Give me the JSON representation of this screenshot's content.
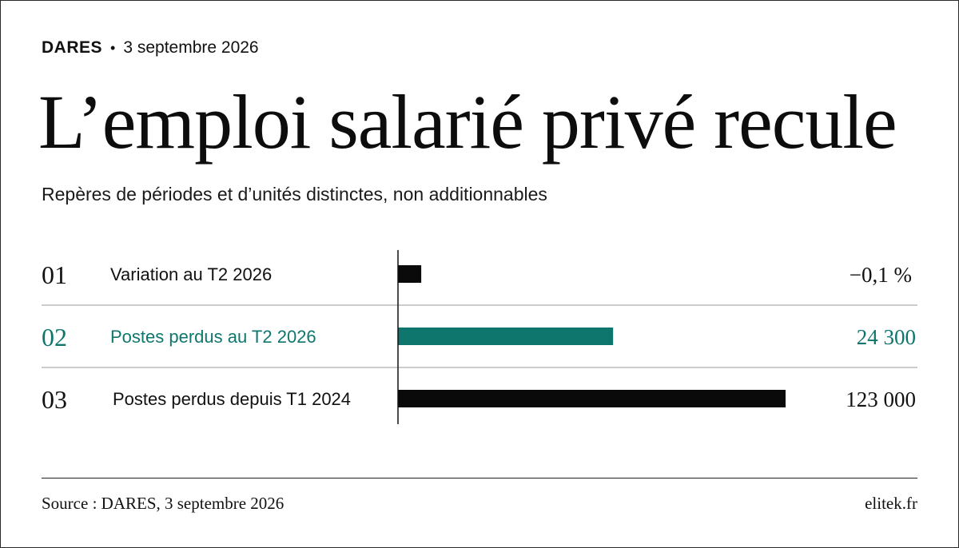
{
  "header": {
    "source": "DARES",
    "bullet": "•",
    "date": "3 septembre 2026",
    "title": "L’emploi salarié privé recule",
    "subtitle": "Repères de périodes et d’unités distinctes, non additionnables"
  },
  "chart_data": {
    "type": "bar",
    "title": "L’emploi salarié privé recule",
    "subtitle": "Repères de périodes et d’unités distinctes, non additionnables",
    "orientation": "horizontal",
    "grid": false,
    "rows": [
      {
        "index": "01",
        "label": "Variation au T2 2026",
        "value_label": "−0,1 %",
        "value": -0.1,
        "bar_fraction": 0.06,
        "color": "#0a0a0a"
      },
      {
        "index": "02",
        "label": "Postes perdus au T2 2026",
        "value_label": "24 300",
        "value": 24300,
        "bar_fraction": 0.555,
        "color": "#0f766e"
      },
      {
        "index": "03",
        "label": "Postes perdus depuis T1 2024",
        "value_label": "123 000",
        "value": 123000,
        "bar_fraction": 1.0,
        "color": "#0a0a0a"
      }
    ],
    "highlight_color": "#0f766e"
  },
  "footer": {
    "source": "Source : DARES, 3 septembre 2026",
    "site": "elitek.fr"
  }
}
